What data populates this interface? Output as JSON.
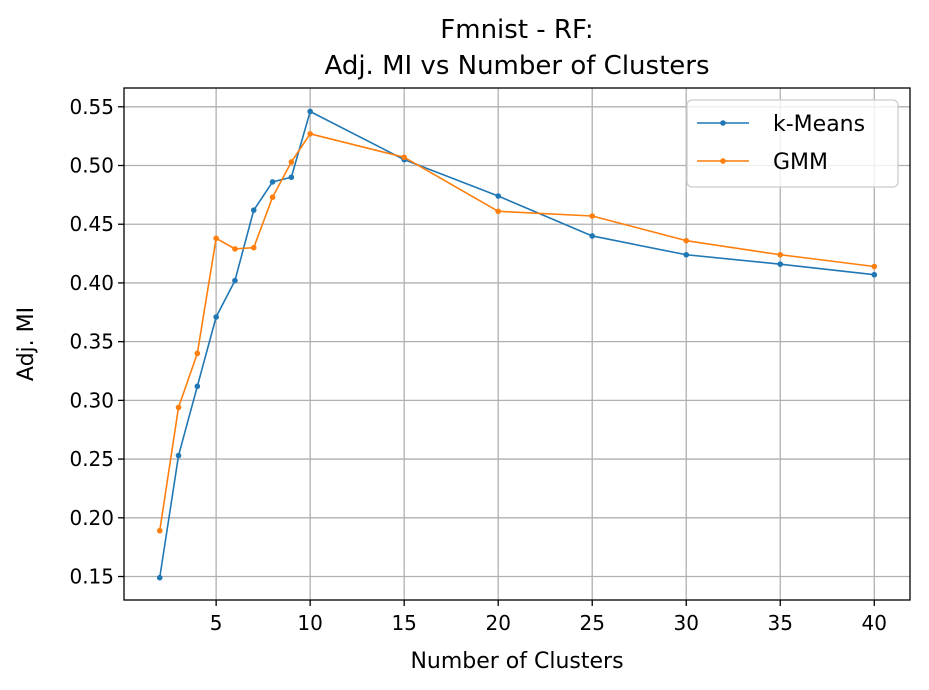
{
  "chart_data": {
    "type": "line",
    "title_line1": "Fmnist - RF:",
    "title_line2": "Adj. MI vs Number of Clusters",
    "xlabel": "Number of Clusters",
    "ylabel": "Adj. MI",
    "xlim": [
      0.1,
      41.9
    ],
    "ylim": [
      0.13,
      0.566
    ],
    "xticks": [
      5,
      10,
      15,
      20,
      25,
      30,
      35,
      40
    ],
    "yticks": [
      0.15,
      0.2,
      0.25,
      0.3,
      0.35,
      0.4,
      0.45,
      0.5,
      0.55
    ],
    "xtick_labels": [
      "5",
      "10",
      "15",
      "20",
      "25",
      "30",
      "35",
      "40"
    ],
    "ytick_labels": [
      "0.15",
      "0.20",
      "0.25",
      "0.30",
      "0.35",
      "0.40",
      "0.45",
      "0.50",
      "0.55"
    ],
    "grid": true,
    "legend_position": "top-right",
    "x": [
      2,
      3,
      4,
      5,
      6,
      7,
      8,
      9,
      10,
      15,
      20,
      25,
      30,
      35,
      40
    ],
    "series": [
      {
        "name": "k-Means",
        "color": "#1f77b4",
        "values": [
          0.149,
          0.253,
          0.312,
          0.371,
          0.402,
          0.462,
          0.486,
          0.49,
          0.546,
          0.505,
          0.474,
          0.44,
          0.424,
          0.416,
          0.407
        ]
      },
      {
        "name": "GMM",
        "color": "#ff7f0e",
        "values": [
          0.189,
          0.294,
          0.34,
          0.438,
          0.429,
          0.43,
          0.473,
          0.503,
          0.527,
          0.507,
          0.461,
          0.457,
          0.436,
          0.424,
          0.414
        ]
      }
    ]
  }
}
